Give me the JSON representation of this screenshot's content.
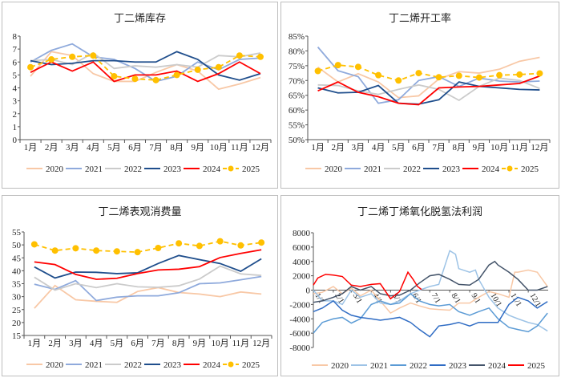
{
  "colors": {
    "2020": "#F8C8A6",
    "2021": "#8FAADC",
    "2022": "#CBCBCB",
    "2023": "#1F4E8C",
    "2024": "#FF0000",
    "2025": "#FFC000"
  },
  "profit_colors": {
    "2020": "#F8C8A6",
    "2021": "#9DC3E6",
    "2022": "#5B9BD5",
    "2023": "#2F6CC4",
    "2024": "#44546A",
    "2025": "#FF0000"
  },
  "chart_data": [
    {
      "type": "line",
      "title": "丁二烯库存",
      "categories": [
        "1月",
        "2月",
        "3月",
        "4月",
        "5月",
        "6月",
        "7月",
        "8月",
        "9月",
        "10月",
        "11月",
        "12月"
      ],
      "ylim": [
        0,
        8
      ],
      "yticks": [
        "0",
        "1",
        "2",
        "3",
        "4",
        "5",
        "6",
        "7",
        "8"
      ],
      "legend": "bottom",
      "series": [
        {
          "name": "2020",
          "values": [
            4.9,
            6.8,
            6.5,
            5.1,
            4.5,
            4.5,
            5.2,
            5.8,
            5.3,
            3.9,
            4.3,
            4.8
          ]
        },
        {
          "name": "2021",
          "values": [
            6.0,
            6.9,
            7.4,
            6.4,
            6.2,
            5.5,
            4.5,
            4.9,
            6.0,
            5.4,
            6.2,
            6.3
          ]
        },
        {
          "name": "2022",
          "values": [
            6.1,
            6.2,
            5.8,
            6.7,
            5.5,
            5.7,
            5.6,
            5.8,
            5.6,
            6.5,
            6.4,
            6.7
          ]
        },
        {
          "name": "2023",
          "values": [
            6.1,
            5.8,
            5.9,
            6.1,
            6.1,
            6.0,
            6.0,
            6.8,
            6.2,
            5.0,
            4.6,
            5.1
          ]
        },
        {
          "name": "2024",
          "values": [
            5.2,
            6.0,
            5.3,
            6.0,
            4.5,
            5.0,
            5.0,
            5.3,
            4.5,
            5.1,
            6.0,
            5.1
          ]
        },
        {
          "name": "2025",
          "values": [
            5.6,
            6.2,
            6.4,
            6.5,
            4.9,
            4.7,
            4.6,
            5.0,
            5.4,
            5.6,
            6.5,
            6.4
          ]
        }
      ]
    },
    {
      "type": "line",
      "title": "丁二烯开工率",
      "categories": [
        "1月",
        "2月",
        "3月",
        "4月",
        "5月",
        "6月",
        "7月",
        "8月",
        "9月",
        "10月",
        "11月",
        "12月"
      ],
      "ylim": [
        50,
        85
      ],
      "yticks": [
        "50%",
        "55%",
        "60%",
        "65%",
        "70%",
        "75%",
        "80%",
        "85%"
      ],
      "legend": "bottom",
      "series": [
        {
          "name": "2020",
          "values": [
            74.5,
            69.5,
            72.3,
            69.5,
            64.2,
            64.8,
            70.5,
            73.0,
            72.5,
            73.8,
            76.5,
            77.8
          ]
        },
        {
          "name": "2021",
          "values": [
            81.3,
            73.3,
            71.3,
            62.3,
            63.5,
            70.0,
            71.3,
            68.0,
            70.8,
            69.8,
            69.5,
            69.8
          ]
        },
        {
          "name": "2022",
          "values": [
            68.5,
            68.3,
            66.5,
            65.3,
            67.0,
            68.5,
            67.0,
            63.3,
            68.0,
            70.8,
            70.0,
            67.3
          ]
        },
        {
          "name": "2023",
          "values": [
            67.5,
            65.8,
            66.0,
            68.3,
            62.3,
            62.0,
            63.5,
            69.5,
            68.0,
            67.5,
            67.0,
            66.8
          ]
        },
        {
          "name": "2024",
          "values": [
            66.5,
            69.5,
            66.0,
            64.5,
            62.3,
            61.8,
            67.5,
            67.8,
            68.0,
            68.5,
            69.0,
            71.5
          ]
        },
        {
          "name": "2025",
          "values": [
            73.2,
            75.2,
            74.6,
            71.8,
            70.0,
            72.5,
            71.1,
            71.6,
            71.0,
            71.8,
            72.0,
            72.4
          ]
        }
      ]
    },
    {
      "type": "line",
      "title": "丁二烯表观消费量",
      "categories": [
        "1月",
        "2月",
        "3月",
        "4月",
        "5月",
        "6月",
        "7月",
        "8月",
        "9月",
        "10月",
        "11月",
        "12月"
      ],
      "ylim": [
        15,
        55
      ],
      "yticks": [
        "15",
        "20",
        "25",
        "30",
        "35",
        "40",
        "45",
        "50",
        "55"
      ],
      "legend": "bottom",
      "series": [
        {
          "name": "2020",
          "values": [
            25.5,
            34.3,
            28.8,
            28.2,
            27.8,
            32.0,
            33.5,
            31.6,
            31.0,
            30.0,
            31.8,
            31.0
          ]
        },
        {
          "name": "2021",
          "values": [
            34.8,
            32.8,
            36.2,
            28.5,
            29.8,
            30.3,
            30.3,
            31.5,
            35.0,
            35.3,
            36.5,
            37.8
          ]
        },
        {
          "name": "2022",
          "values": [
            37.5,
            32.5,
            35.0,
            33.5,
            35.0,
            33.8,
            33.6,
            34.2,
            36.8,
            41.8,
            38.8,
            38.2
          ]
        },
        {
          "name": "2023",
          "values": [
            41.5,
            37.2,
            39.5,
            39.4,
            38.9,
            39.2,
            42.8,
            45.9,
            44.3,
            42.8,
            39.8,
            44.6
          ]
        },
        {
          "name": "2024",
          "values": [
            43.4,
            42.4,
            38.6,
            36.7,
            37.1,
            38.9,
            40.3,
            40.6,
            41.6,
            45.1,
            46.7,
            48.1
          ]
        },
        {
          "name": "2025",
          "values": [
            50.2,
            47.8,
            48.7,
            47.8,
            47.5,
            47.2,
            48.8,
            50.6,
            49.6,
            51.4,
            49.8,
            50.9
          ]
        }
      ]
    },
    {
      "type": "line",
      "title": "丁二烯丁烯氧化脱氢法利润",
      "xticks": [
        "1/1",
        "2/1",
        "3/1",
        "4/1",
        "5/1",
        "6/1",
        "7/1",
        "8/1",
        "9/1",
        "10/1",
        "11/1",
        "12/1"
      ],
      "ylim": [
        -8000,
        8000
      ],
      "yticks": [
        "-8000",
        "-6000",
        "-4000",
        "-2000",
        "0",
        "2000",
        "4000",
        "6000",
        "8000"
      ],
      "legend": "bottom",
      "series": [
        {
          "name": "2020",
          "x": [
            "01-01",
            "01-15",
            "02-01",
            "02-15",
            "03-01",
            "03-15",
            "04-01",
            "04-15",
            "05-01",
            "05-15",
            "06-01",
            "06-15",
            "07-01",
            "07-15",
            "08-01",
            "08-15",
            "09-01",
            "09-15",
            "10-01",
            "10-15",
            "11-01",
            "11-10",
            "11-15",
            "12-01",
            "12-15",
            "12-31"
          ],
          "values": [
            -500,
            -300,
            500,
            -500,
            300,
            -800,
            0,
            -1500,
            -3200,
            -2500,
            -1800,
            -2200,
            -2600,
            -2700,
            -2800,
            -1800,
            -1800,
            -1000,
            -200,
            -500,
            -1000,
            2500,
            2500,
            2800,
            2500,
            500
          ]
        },
        {
          "name": "2021",
          "x": [
            "01-01",
            "01-15",
            "02-01",
            "02-15",
            "03-01",
            "03-15",
            "04-01",
            "04-15",
            "05-01",
            "05-15",
            "06-01",
            "06-15",
            "07-01",
            "07-15",
            "08-01",
            "08-10",
            "08-15",
            "09-01",
            "09-10",
            "09-15",
            "10-01",
            "10-15",
            "11-01",
            "11-15",
            "12-01",
            "12-15",
            "12-31"
          ],
          "values": [
            0,
            -1500,
            -1500,
            -2000,
            0,
            -1000,
            -500,
            -1800,
            -2000,
            -1500,
            -500,
            0,
            500,
            800,
            5500,
            5000,
            3000,
            2500,
            2800,
            1500,
            -1000,
            -2500,
            -3500,
            -4000,
            -4500,
            -4800,
            -5700
          ]
        },
        {
          "name": "2022",
          "x": [
            "01-01",
            "01-15",
            "02-01",
            "02-15",
            "03-01",
            "03-15",
            "04-01",
            "04-15",
            "05-01",
            "05-15",
            "06-01",
            "06-15",
            "07-01",
            "07-15",
            "08-01",
            "08-15",
            "09-01",
            "09-15",
            "10-01",
            "10-15",
            "11-01",
            "11-15",
            "12-01",
            "12-15",
            "12-31"
          ],
          "values": [
            -6000,
            -4500,
            -4000,
            -3800,
            -4600,
            -4000,
            -2000,
            -1500,
            -2000,
            -1800,
            -500,
            -1500,
            -2000,
            -2200,
            -2000,
            -3000,
            -3500,
            -3000,
            -2500,
            -4000,
            -5200,
            -5500,
            -5800,
            -5000,
            -3200
          ]
        },
        {
          "name": "2023",
          "x": [
            "01-01",
            "01-15",
            "02-01",
            "02-15",
            "03-01",
            "03-15",
            "04-01",
            "04-15",
            "05-01",
            "05-15",
            "06-01",
            "06-15",
            "07-01",
            "07-15",
            "08-01",
            "08-15",
            "09-01",
            "09-15",
            "10-01",
            "10-15",
            "11-01",
            "11-15",
            "12-01",
            "12-15",
            "12-31"
          ],
          "values": [
            -3000,
            -2500,
            -1500,
            -2800,
            -3500,
            -3800,
            -4000,
            -4200,
            -4000,
            -3800,
            -4500,
            -5500,
            -6500,
            -5000,
            -4800,
            -4500,
            -5000,
            -4500,
            -4500,
            -4500,
            -2000,
            -1000,
            -1500,
            -2500,
            -1600
          ]
        },
        {
          "name": "2024",
          "x": [
            "01-01",
            "01-15",
            "02-01",
            "02-15",
            "03-01",
            "03-15",
            "04-01",
            "04-15",
            "05-01",
            "05-15",
            "06-01",
            "06-15",
            "07-01",
            "07-15",
            "08-01",
            "08-15",
            "09-01",
            "09-15",
            "10-01",
            "10-10",
            "10-15",
            "11-01",
            "11-15",
            "12-01",
            "12-15",
            "12-31"
          ],
          "values": [
            -1700,
            -1500,
            -1000,
            -500,
            500,
            0,
            500,
            -500,
            -800,
            -700,
            0,
            1000,
            2000,
            2200,
            1500,
            800,
            700,
            1500,
            3500,
            4000,
            3500,
            2500,
            1500,
            0,
            0,
            500
          ]
        },
        {
          "name": "2025",
          "x": [
            "01-01",
            "01-08",
            "01-20",
            "02-01",
            "02-15",
            "03-01",
            "03-15",
            "04-01",
            "04-15",
            "05-01",
            "05-15",
            "05-28",
            "06-05",
            "06-12",
            "06-18"
          ],
          "values": [
            700,
            1700,
            2200,
            2100,
            1900,
            700,
            500,
            800,
            900,
            -1200,
            -200,
            2500,
            1500,
            500,
            100
          ]
        }
      ]
    }
  ]
}
